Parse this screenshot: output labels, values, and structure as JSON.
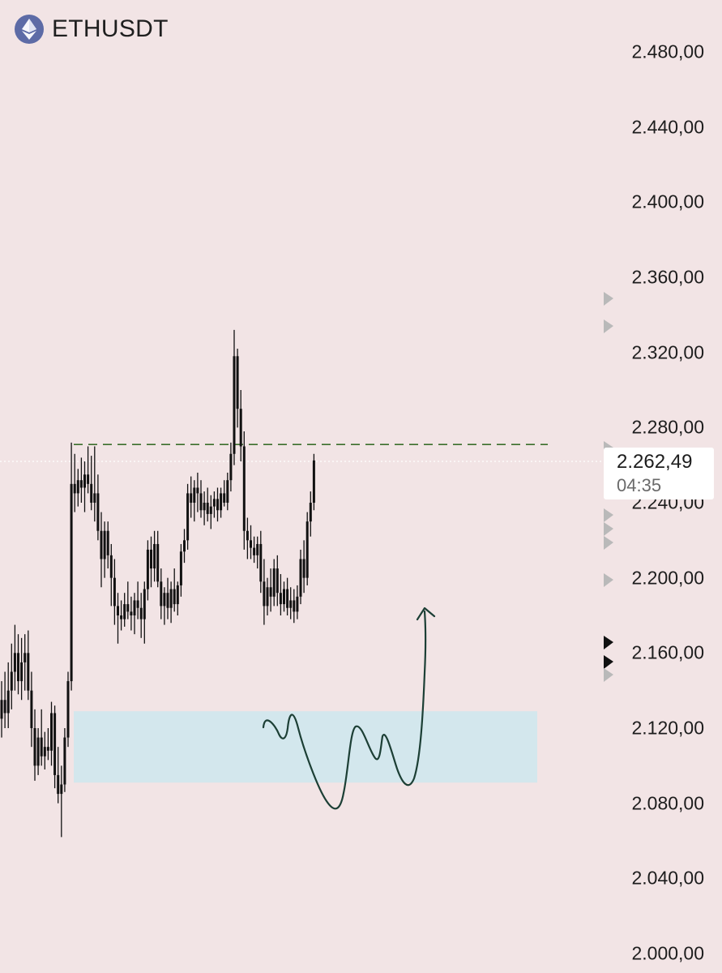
{
  "header": {
    "symbol": "ETHUSDT",
    "icon": "ethereum-icon"
  },
  "chart_data": {
    "type": "candlestick",
    "symbol": "ETHUSDT",
    "ylim": [
      2000,
      2480
    ],
    "y_ticks": [
      "2.480,00",
      "2.440,00",
      "2.400,00",
      "2.360,00",
      "2.320,00",
      "2.280,00",
      "2.240,00",
      "2.200,00",
      "2.160,00",
      "2.120,00",
      "2.080,00",
      "2.040,00",
      "2.000,00"
    ],
    "y_tick_values": [
      2480,
      2440,
      2400,
      2360,
      2320,
      2280,
      2240,
      2200,
      2160,
      2120,
      2080,
      2040,
      2000
    ],
    "current_price": "2.262,49",
    "current_price_value": 2262.49,
    "countdown": "04:35",
    "resistance_level": 2271,
    "demand_zone": [
      2091,
      2129
    ],
    "candles": [
      [
        2125,
        2145,
        2115,
        2135
      ],
      [
        2135,
        2150,
        2120,
        2128
      ],
      [
        2128,
        2155,
        2120,
        2140
      ],
      [
        2140,
        2165,
        2130,
        2150
      ],
      [
        2150,
        2175,
        2140,
        2160
      ],
      [
        2160,
        2170,
        2138,
        2145
      ],
      [
        2145,
        2168,
        2135,
        2155
      ],
      [
        2155,
        2170,
        2140,
        2160
      ],
      [
        2160,
        2172,
        2135,
        2140
      ],
      [
        2140,
        2150,
        2110,
        2120
      ],
      [
        2120,
        2130,
        2092,
        2100
      ],
      [
        2100,
        2120,
        2095,
        2115
      ],
      [
        2115,
        2130,
        2100,
        2105
      ],
      [
        2105,
        2118,
        2098,
        2110
      ],
      [
        2110,
        2120,
        2103,
        2108
      ],
      [
        2108,
        2134,
        2100,
        2128
      ],
      [
        2128,
        2132,
        2088,
        2095
      ],
      [
        2095,
        2110,
        2080,
        2085
      ],
      [
        2085,
        2100,
        2062,
        2090
      ],
      [
        2090,
        2120,
        2086,
        2115
      ],
      [
        2115,
        2150,
        2110,
        2145
      ],
      [
        2145,
        2272,
        2140,
        2250
      ],
      [
        2250,
        2266,
        2235,
        2245
      ],
      [
        2245,
        2258,
        2238,
        2252
      ],
      [
        2252,
        2264,
        2240,
        2248
      ],
      [
        2248,
        2262,
        2235,
        2255
      ],
      [
        2255,
        2270,
        2245,
        2250
      ],
      [
        2250,
        2265,
        2236,
        2240
      ],
      [
        2240,
        2270,
        2230,
        2245
      ],
      [
        2245,
        2255,
        2220,
        2225
      ],
      [
        2225,
        2235,
        2195,
        2210
      ],
      [
        2210,
        2230,
        2200,
        2225
      ],
      [
        2225,
        2230,
        2205,
        2212
      ],
      [
        2212,
        2218,
        2185,
        2200
      ],
      [
        2200,
        2210,
        2175,
        2185
      ],
      [
        2185,
        2192,
        2165,
        2180
      ],
      [
        2180,
        2188,
        2172,
        2178
      ],
      [
        2178,
        2192,
        2174,
        2186
      ],
      [
        2186,
        2198,
        2178,
        2182
      ],
      [
        2182,
        2190,
        2172,
        2180
      ],
      [
        2180,
        2192,
        2170,
        2188
      ],
      [
        2188,
        2198,
        2178,
        2184
      ],
      [
        2184,
        2192,
        2168,
        2178
      ],
      [
        2178,
        2198,
        2165,
        2194
      ],
      [
        2194,
        2220,
        2188,
        2215
      ],
      [
        2215,
        2222,
        2195,
        2205
      ],
      [
        2205,
        2225,
        2198,
        2218
      ],
      [
        2218,
        2225,
        2195,
        2198
      ],
      [
        2198,
        2205,
        2178,
        2185
      ],
      [
        2185,
        2195,
        2175,
        2192
      ],
      [
        2192,
        2200,
        2178,
        2184
      ],
      [
        2184,
        2198,
        2176,
        2194
      ],
      [
        2194,
        2205,
        2182,
        2186
      ],
      [
        2186,
        2198,
        2180,
        2196
      ],
      [
        2196,
        2218,
        2190,
        2214
      ],
      [
        2214,
        2226,
        2208,
        2220
      ],
      [
        2220,
        2250,
        2215,
        2245
      ],
      [
        2245,
        2254,
        2232,
        2240
      ],
      [
        2240,
        2252,
        2230,
        2248
      ],
      [
        2248,
        2256,
        2235,
        2245
      ],
      [
        2245,
        2252,
        2232,
        2236
      ],
      [
        2236,
        2246,
        2228,
        2240
      ],
      [
        2240,
        2248,
        2230,
        2234
      ],
      [
        2234,
        2244,
        2226,
        2238
      ],
      [
        2238,
        2246,
        2232,
        2242
      ],
      [
        2242,
        2248,
        2230,
        2236
      ],
      [
        2236,
        2248,
        2232,
        2245
      ],
      [
        2245,
        2252,
        2238,
        2240
      ],
      [
        2240,
        2256,
        2236,
        2252
      ],
      [
        2252,
        2272,
        2246,
        2266
      ],
      [
        2266,
        2332,
        2260,
        2318
      ],
      [
        2318,
        2322,
        2280,
        2290
      ],
      [
        2290,
        2300,
        2262,
        2270
      ],
      [
        2270,
        2278,
        2215,
        2225
      ],
      [
        2225,
        2232,
        2210,
        2220
      ],
      [
        2220,
        2228,
        2210,
        2216
      ],
      [
        2216,
        2222,
        2208,
        2212
      ],
      [
        2212,
        2222,
        2205,
        2218
      ],
      [
        2218,
        2225,
        2192,
        2198
      ],
      [
        2198,
        2210,
        2175,
        2185
      ],
      [
        2185,
        2200,
        2180,
        2195
      ],
      [
        2195,
        2205,
        2182,
        2190
      ],
      [
        2190,
        2210,
        2185,
        2205
      ],
      [
        2205,
        2212,
        2185,
        2192
      ],
      [
        2192,
        2202,
        2180,
        2186
      ],
      [
        2186,
        2198,
        2182,
        2194
      ],
      [
        2194,
        2200,
        2180,
        2184
      ],
      [
        2184,
        2195,
        2178,
        2188
      ],
      [
        2188,
        2194,
        2176,
        2182
      ],
      [
        2182,
        2196,
        2178,
        2190
      ],
      [
        2190,
        2215,
        2186,
        2210
      ],
      [
        2210,
        2220,
        2192,
        2200
      ],
      [
        2200,
        2235,
        2196,
        2230
      ],
      [
        2230,
        2246,
        2222,
        2240
      ],
      [
        2240,
        2266,
        2236,
        2262.49
      ]
    ]
  }
}
